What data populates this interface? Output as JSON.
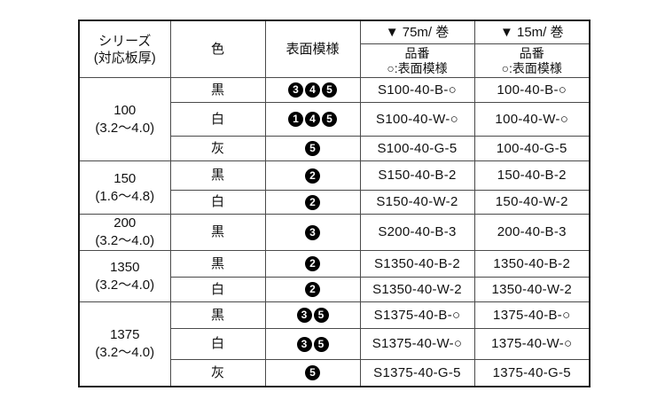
{
  "table": {
    "header": {
      "series_line1": "シリーズ",
      "series_line2": "(対応板厚)",
      "color": "色",
      "pattern": "表面模様",
      "roll_75m": "▼ 75m/ 巻",
      "roll_15m": "▼ 15m/ 巻",
      "part_line1": "品番",
      "part_line2": "○:表面模様"
    },
    "groups": [
      {
        "series": "100",
        "thickness": "(3.2～4.0)",
        "rows": [
          {
            "color": "黒",
            "patterns": [
              3,
              4,
              5
            ],
            "part_75m": "S100-40-B-○",
            "part_15m": "100-40-B-○"
          },
          {
            "color": "白",
            "patterns": [
              1,
              4,
              5
            ],
            "part_75m": "S100-40-W-○",
            "part_15m": "100-40-W-○"
          },
          {
            "color": "灰",
            "patterns": [
              5
            ],
            "part_75m": "S100-40-G-5",
            "part_15m": "100-40-G-5"
          }
        ]
      },
      {
        "series": "150",
        "thickness": "(1.6～4.8)",
        "rows": [
          {
            "color": "黒",
            "patterns": [
              2
            ],
            "part_75m": "S150-40-B-2",
            "part_15m": "150-40-B-2"
          },
          {
            "color": "白",
            "patterns": [
              2
            ],
            "part_75m": "S150-40-W-2",
            "part_15m": "150-40-W-2"
          }
        ]
      },
      {
        "series": "200",
        "thickness": "(3.2～4.0)",
        "rows": [
          {
            "color": "黒",
            "patterns": [
              3
            ],
            "part_75m": "S200-40-B-3",
            "part_15m": "200-40-B-3"
          }
        ]
      },
      {
        "series": "1350",
        "thickness": "(3.2～4.0)",
        "rows": [
          {
            "color": "黒",
            "patterns": [
              2
            ],
            "part_75m": "S1350-40-B-2",
            "part_15m": "1350-40-B-2"
          },
          {
            "color": "白",
            "patterns": [
              2
            ],
            "part_75m": "S1350-40-W-2",
            "part_15m": "1350-40-W-2"
          }
        ]
      },
      {
        "series": "1375",
        "thickness": "(3.2～4.0)",
        "rows": [
          {
            "color": "黒",
            "patterns": [
              3,
              5
            ],
            "part_75m": "S1375-40-B-○",
            "part_15m": "1375-40-B-○"
          },
          {
            "color": "白",
            "patterns": [
              3,
              5
            ],
            "part_75m": "S1375-40-W-○",
            "part_15m": "1375-40-W-○"
          },
          {
            "color": "灰",
            "patterns": [
              5
            ],
            "part_75m": "S1375-40-G-5",
            "part_15m": "1375-40-G-5"
          }
        ]
      }
    ]
  }
}
